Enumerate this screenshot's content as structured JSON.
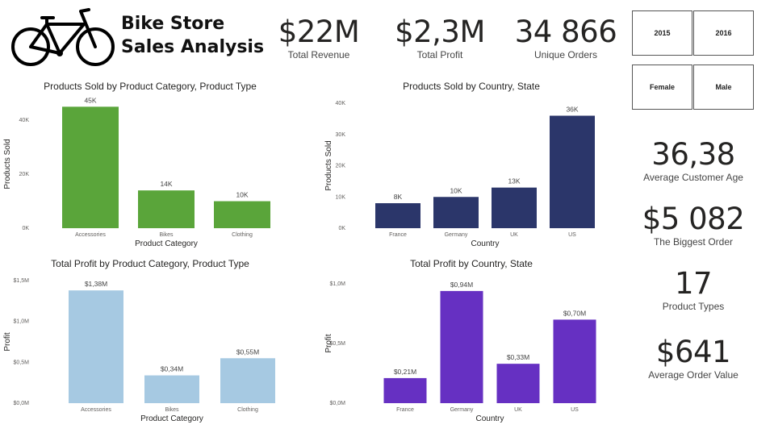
{
  "header": {
    "title_line1": "Bike Store",
    "title_line2": "Sales Analysis",
    "logo_icon": "bicycle-icon"
  },
  "kpis_top": [
    {
      "value": "$22M",
      "label": "Total Revenue"
    },
    {
      "value": "$2,3M",
      "label": "Total Profit"
    },
    {
      "value": "34 866",
      "label": "Unique Orders"
    }
  ],
  "slicers": {
    "years": [
      "2015",
      "2016"
    ],
    "genders": [
      "Female",
      "Male"
    ]
  },
  "kpis_side": [
    {
      "value": "36,38",
      "label": "Average Customer Age"
    },
    {
      "value": "$5 082",
      "label": "The Biggest Order"
    },
    {
      "value": "17",
      "label": "Product Types"
    },
    {
      "value": "$641",
      "label": "Average Order Value"
    }
  ],
  "chart_data": [
    {
      "type": "bar",
      "title": "Products Sold by Product Category, Product Type",
      "xlabel": "Product Category",
      "ylabel": "Products Sold",
      "categories": [
        "Accessories",
        "Bikes",
        "Clothing"
      ],
      "values": [
        45000,
        14000,
        10000
      ],
      "data_labels": [
        "45K",
        "14K",
        "10K"
      ],
      "yticks": [
        {
          "v": 0,
          "label": "0K"
        },
        {
          "v": 20000,
          "label": "20K"
        },
        {
          "v": 40000,
          "label": "40K"
        }
      ],
      "ylim": [
        0,
        47500
      ],
      "color": "#5aa53a",
      "grid": false
    },
    {
      "type": "bar",
      "title": "Products Sold by Country, State",
      "xlabel": "Country",
      "ylabel": "Products Sold",
      "categories": [
        "France",
        "Germany",
        "UK",
        "US"
      ],
      "values": [
        8000,
        10000,
        13000,
        36000
      ],
      "data_labels": [
        "8K",
        "10K",
        "13K",
        "36K"
      ],
      "yticks": [
        {
          "v": 0,
          "label": "0K"
        },
        {
          "v": 10000,
          "label": "10K"
        },
        {
          "v": 20000,
          "label": "20K"
        },
        {
          "v": 30000,
          "label": "30K"
        },
        {
          "v": 40000,
          "label": "40K"
        }
      ],
      "ylim": [
        0,
        40000
      ],
      "color": "#2b366a",
      "grid": false
    },
    {
      "type": "bar",
      "title": "Total Profit by Product Category, Product Type",
      "xlabel": "Product Category",
      "ylabel": "Profit",
      "categories": [
        "Accessories",
        "Bikes",
        "Clothing"
      ],
      "values": [
        1.38,
        0.34,
        0.55
      ],
      "data_labels": [
        "$1,38M",
        "$0,34M",
        "$0,55M"
      ],
      "yticks": [
        {
          "v": 0,
          "label": "$0,0M"
        },
        {
          "v": 0.5,
          "label": "$0,5M"
        },
        {
          "v": 1.0,
          "label": "$1,0M"
        },
        {
          "v": 1.5,
          "label": "$1,5M"
        }
      ],
      "ylim": [
        0,
        1.5
      ],
      "color": "#a6c9e2",
      "grid": false
    },
    {
      "type": "bar",
      "title": "Total Profit by Country, State",
      "xlabel": "Country",
      "ylabel": "Profit",
      "categories": [
        "France",
        "Germany",
        "UK",
        "US"
      ],
      "values": [
        0.21,
        0.94,
        0.33,
        0.7
      ],
      "data_labels": [
        "$0,21M",
        "$0,94M",
        "$0,33M",
        "$0,70M"
      ],
      "yticks": [
        {
          "v": 0,
          "label": "$0,0M"
        },
        {
          "v": 0.5,
          "label": "$0,5M"
        },
        {
          "v": 1.0,
          "label": "$1,0M"
        }
      ],
      "ylim": [
        0,
        1.0
      ],
      "color": "#6630c2",
      "grid": false
    }
  ]
}
